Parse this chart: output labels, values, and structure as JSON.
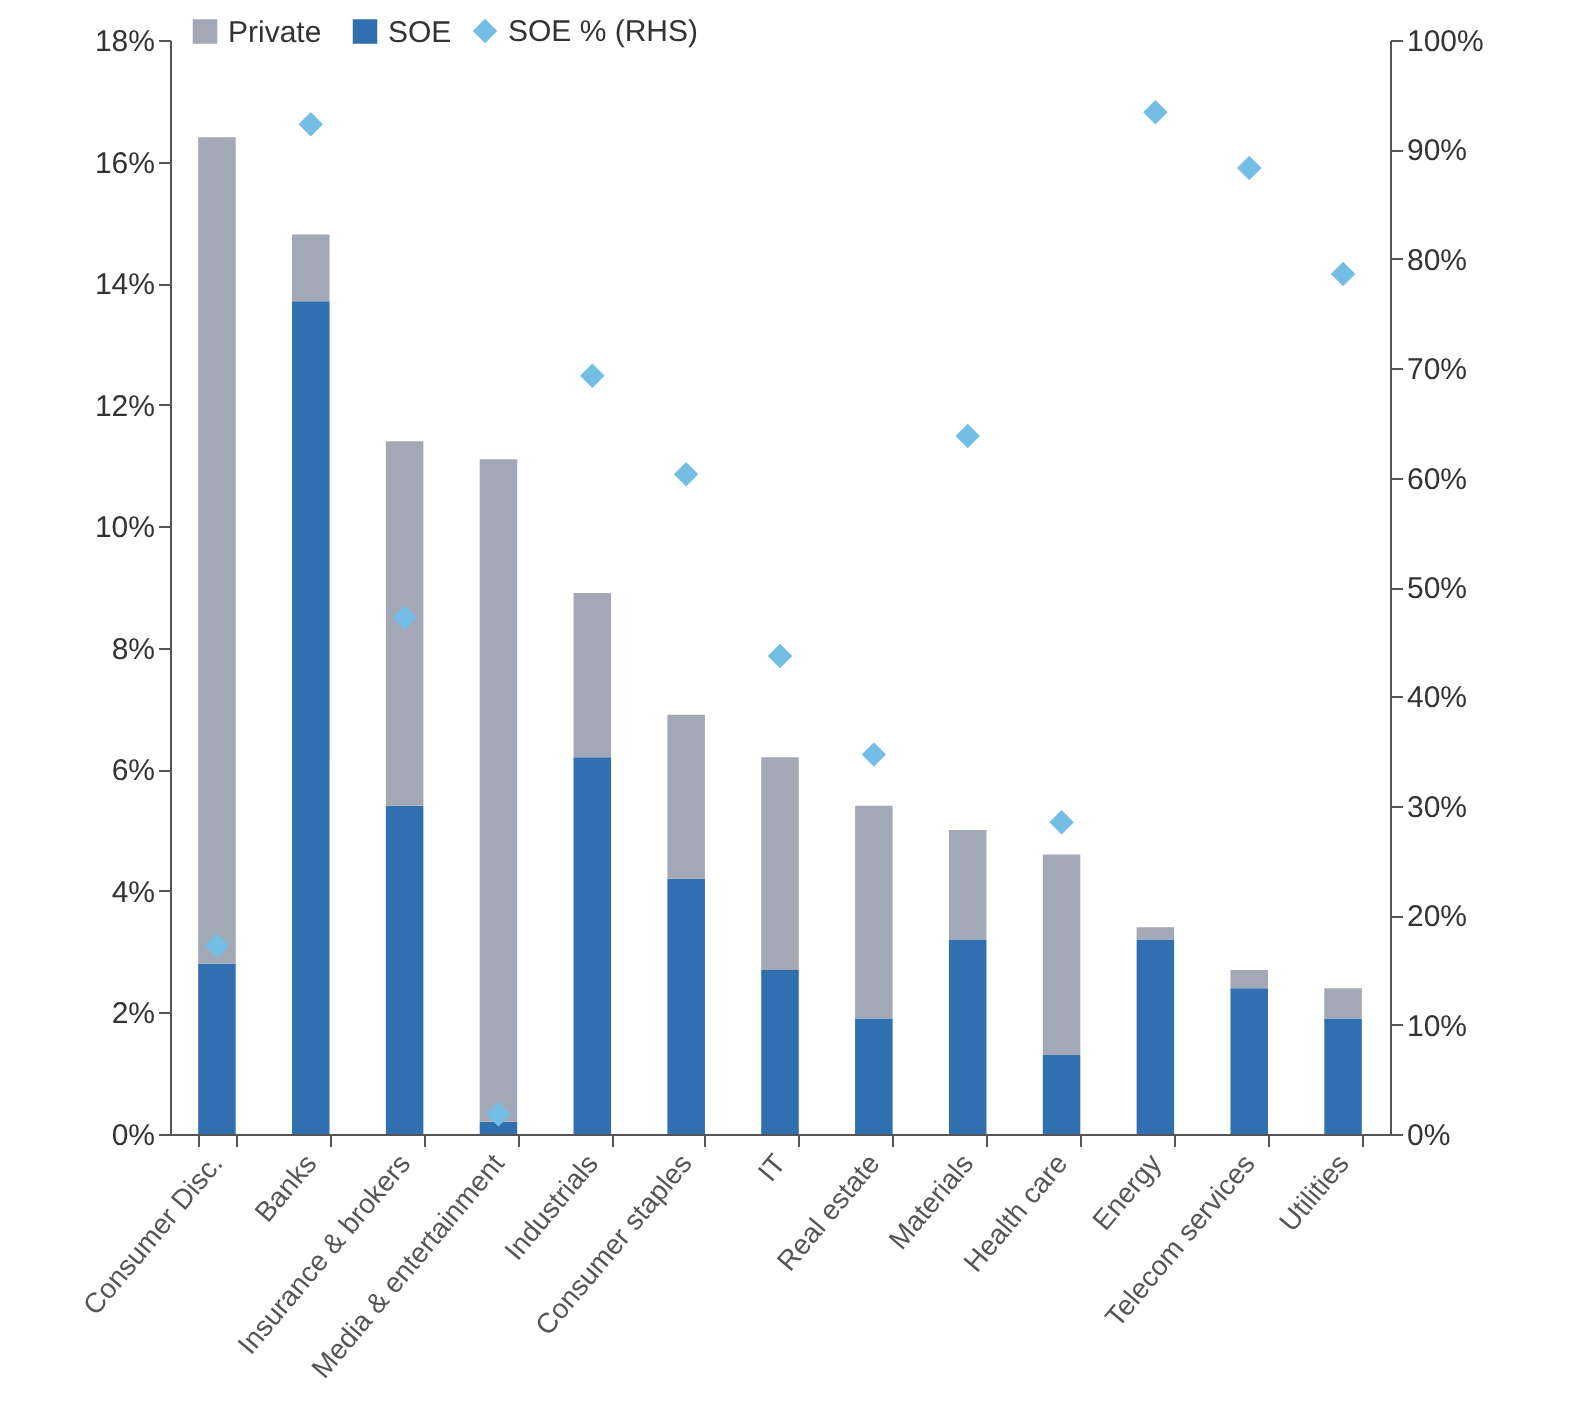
{
  "chart_data": {
    "type": "bar",
    "stacked": true,
    "categories": [
      "Consumer Disc.",
      "Banks",
      "Insurance & brokers",
      "Media & entertainment",
      "Industrials",
      "Consumer staples",
      "IT",
      "Real estate",
      "Materials",
      "Health care",
      "Energy",
      "Telecom services",
      "Utilities"
    ],
    "series": [
      {
        "name": "SOE",
        "color": "#3170b0",
        "values": [
          2.8,
          13.7,
          5.4,
          0.2,
          6.2,
          4.2,
          2.7,
          1.9,
          3.2,
          1.3,
          3.2,
          2.4,
          1.9
        ]
      },
      {
        "name": "Private",
        "color": "#a3a8b6",
        "values": [
          13.6,
          1.1,
          6.0,
          10.9,
          2.7,
          2.7,
          3.5,
          3.5,
          1.8,
          3.3,
          0.2,
          0.3,
          0.5
        ]
      },
      {
        "name": "SOE % (RHS)",
        "type": "scatter",
        "axis": "y2",
        "color": "#74bde4",
        "values": [
          17.2,
          92.3,
          47.2,
          1.8,
          69.3,
          60.3,
          43.7,
          34.7,
          63.8,
          28.5,
          93.4,
          88.3,
          78.6
        ]
      }
    ],
    "ylim": [
      0,
      18
    ],
    "yticks": [
      {
        "value": 0,
        "label": "0%"
      },
      {
        "value": 2,
        "label": "2%"
      },
      {
        "value": 4,
        "label": "4%"
      },
      {
        "value": 6,
        "label": "6%"
      },
      {
        "value": 8,
        "label": "8%"
      },
      {
        "value": 10,
        "label": "10%"
      },
      {
        "value": 12,
        "label": "12%"
      },
      {
        "value": 14,
        "label": "14%"
      },
      {
        "value": 16,
        "label": "16%"
      },
      {
        "value": 18,
        "label": "18%"
      }
    ],
    "y2lim": [
      0,
      100
    ],
    "y2ticks": [
      {
        "value": 0,
        "label": "0%"
      },
      {
        "value": 10,
        "label": "10%"
      },
      {
        "value": 20,
        "label": "20%"
      },
      {
        "value": 30,
        "label": "30%"
      },
      {
        "value": 40,
        "label": "40%"
      },
      {
        "value": 50,
        "label": "50%"
      },
      {
        "value": 60,
        "label": "60%"
      },
      {
        "value": 70,
        "label": "70%"
      },
      {
        "value": 80,
        "label": "80%"
      },
      {
        "value": 90,
        "label": "90%"
      },
      {
        "value": 100,
        "label": "100%"
      }
    ],
    "marker": "diamond",
    "legend": "top left",
    "grid": false
  }
}
